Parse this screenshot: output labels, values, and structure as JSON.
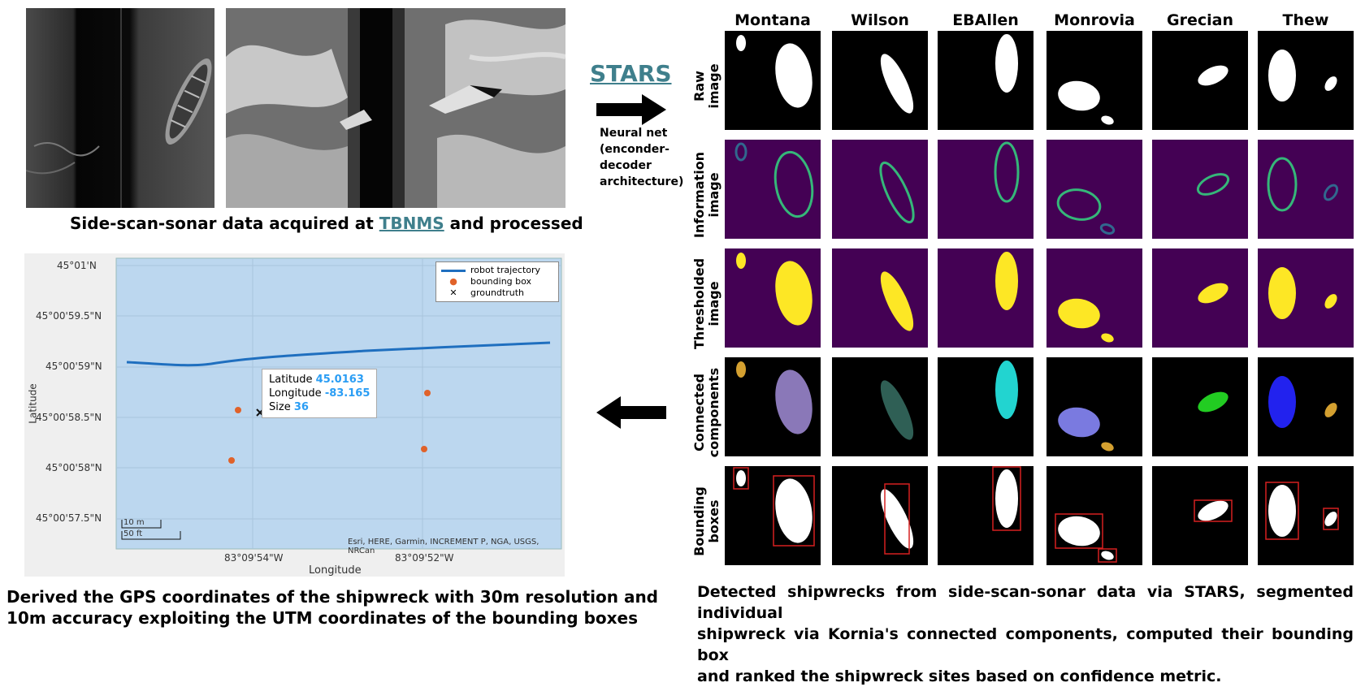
{
  "top_left": {
    "caption_before": "Side-scan-sonar data acquired at ",
    "caption_link": "TBNMS",
    "caption_after": " and processed"
  },
  "stars": {
    "title": "STARS",
    "nn_lines": [
      "Neural net",
      "(enconder-",
      "decoder",
      "architecture)"
    ]
  },
  "grid": {
    "columns": [
      "Montana",
      "Wilson",
      "EBAllen",
      "Monrovia",
      "Grecian",
      "Thew"
    ],
    "rows": [
      [
        "Raw",
        "image"
      ],
      [
        "Information",
        "image"
      ],
      [
        "Thresholded",
        "image"
      ],
      [
        "Connected",
        "components"
      ],
      [
        "Bounding",
        "boxes"
      ]
    ],
    "colors": {
      "purple_bg": "#440154",
      "yellow": "#fde725",
      "box_red": "#d62020"
    }
  },
  "map": {
    "y_ticks": [
      "45°01'N",
      "45°00'59.5\"N",
      "45°00'59\"N",
      "45°00'58.5\"N",
      "45°00'58\"N",
      "45°00'57.5\"N"
    ],
    "x_ticks": [
      "83°09'54\"W",
      "83°09'52\"W"
    ],
    "xlabel": "Longitude",
    "ylabel": "Latitude",
    "legend": [
      "robot trajectory",
      "bounding box",
      "groundtruth"
    ],
    "tooltip": {
      "lat_label": "Latitude",
      "lat_value": "45.0163",
      "lon_label": "Longitude",
      "lon_value": "-83.165",
      "size_label": "Size",
      "size_value": "36"
    },
    "scale": [
      "10 m",
      "50 ft"
    ],
    "attribution": "Esri, HERE, Garmin, INCREMENT P, NGA, USGS, NRCan",
    "colors": {
      "water": "#bcd7ef",
      "trajectory": "#1f6fbf",
      "bbox": "#e0622a"
    }
  },
  "bottom_left_caption": [
    "Derived the GPS coordinates of the shipwreck with 30m resolution and",
    "10m accuracy exploiting the UTM coordinates of the bounding boxes"
  ],
  "bottom_right_caption": [
    "Detected shipwrecks from side-scan-sonar data via STARS, segmented individual",
    "shipwreck via Kornia's connected components, computed their bounding box",
    "and ranked the shipwreck sites based on confidence metric."
  ]
}
